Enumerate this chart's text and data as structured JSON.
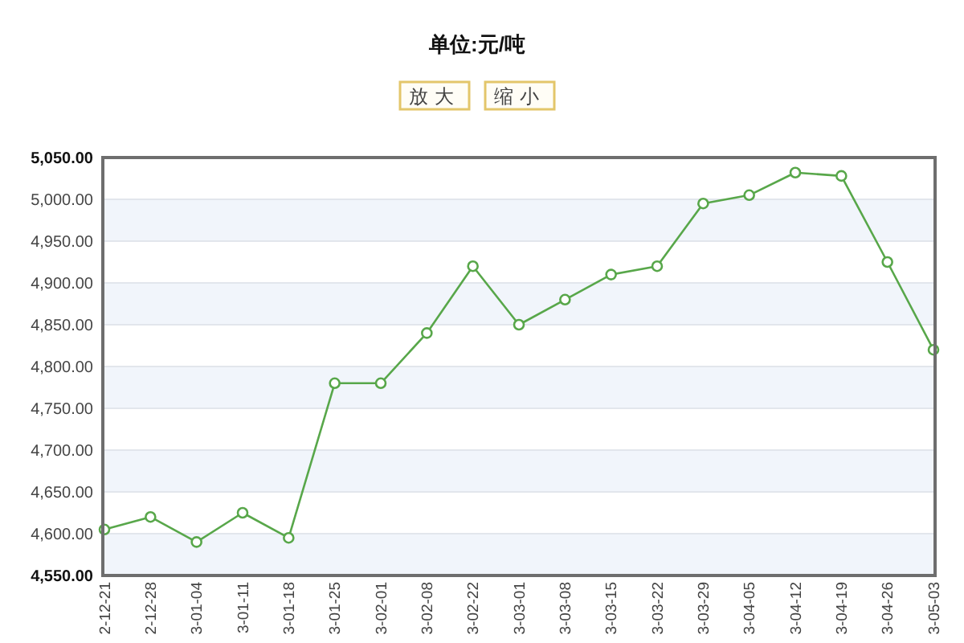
{
  "chart_data": {
    "type": "line",
    "title": "单位:元/吨",
    "annotations": [
      "放大",
      "缩小"
    ],
    "categories": [
      "2-12-21",
      "2-12-28",
      "3-01-04",
      "3-01-11",
      "3-01-18",
      "3-01-25",
      "3-02-01",
      "3-02-08",
      "3-02-22",
      "3-03-01",
      "3-03-08",
      "3-03-15",
      "3-03-22",
      "3-03-29",
      "3-04-05",
      "3-04-12",
      "3-04-19",
      "3-04-26",
      "3-05-03"
    ],
    "series": [
      {
        "color": "#58a74a",
        "values": [
          4605,
          4620,
          4590,
          4625,
          4595,
          4780,
          4780,
          4840,
          4920,
          4850,
          4880,
          4910,
          4920,
          4995,
          5005,
          5032,
          5028,
          4925,
          4820
        ]
      }
    ],
    "ylim": [
      4550,
      5050
    ],
    "yticks": [
      {
        "value": 4550,
        "label": "4,550.00"
      },
      {
        "value": 4600,
        "label": "4,600.00"
      },
      {
        "value": 4650,
        "label": "4,650.00"
      },
      {
        "value": 4700,
        "label": "4,700.00"
      },
      {
        "value": 4750,
        "label": "4,750.00"
      },
      {
        "value": 4800,
        "label": "4,800.00"
      },
      {
        "value": 4850,
        "label": "4,850.00"
      },
      {
        "value": 4900,
        "label": "4,900.00"
      },
      {
        "value": 4950,
        "label": "4,950.00"
      },
      {
        "value": 5000,
        "label": "5,000.00"
      },
      {
        "value": 5050,
        "label": "5,050.00"
      }
    ],
    "grid": "y",
    "marker": "circle",
    "line_style": "solid"
  }
}
